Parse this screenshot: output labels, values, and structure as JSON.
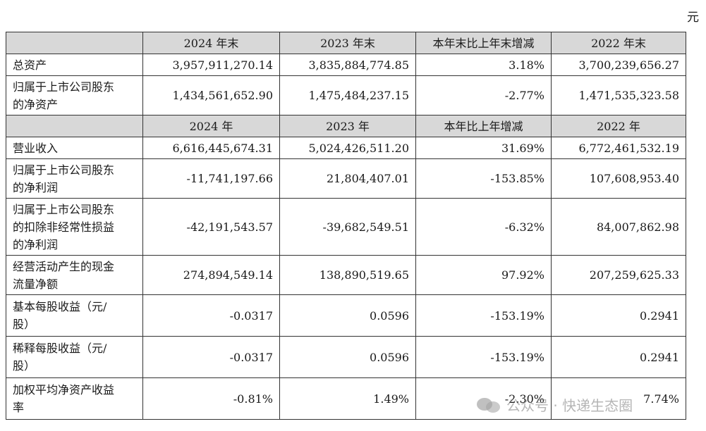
{
  "unit_label": "元",
  "header1": [
    "",
    "2024 年末",
    "2023 年末",
    "本年末比上年末增减",
    "2022 年末"
  ],
  "header2": [
    "",
    "2024 年",
    "2023 年",
    "本年比上年增减",
    "2022 年"
  ],
  "rows_section1": [
    {
      "label_lines": [
        "总资产"
      ],
      "values": [
        "3,957,911,270.14",
        "3,835,884,774.85",
        "3.18%",
        "3,700,239,656.27"
      ]
    },
    {
      "label_lines": [
        "归属于上市公司股东",
        "的净资产"
      ],
      "values": [
        "1,434,561,652.90",
        "1,475,484,237.15",
        "-2.77%",
        "1,471,535,323.58"
      ]
    }
  ],
  "rows_section2": [
    {
      "label_lines": [
        "营业收入"
      ],
      "values": [
        "6,616,445,674.31",
        "5,024,426,511.20",
        "31.69%",
        "6,772,461,532.19"
      ]
    },
    {
      "label_lines": [
        "归属于上市公司股东",
        "的净利润"
      ],
      "values": [
        "-11,741,197.66",
        "21,804,407.01",
        "-153.85%",
        "107,608,953.40"
      ]
    },
    {
      "label_lines": [
        "归属于上市公司股东",
        "的扣除非经常性损益",
        "的净利润"
      ],
      "values": [
        "-42,191,543.57",
        "-39,682,549.51",
        "-6.32%",
        "84,007,862.98"
      ]
    },
    {
      "label_lines": [
        "经营活动产生的现金",
        "流量净额"
      ],
      "values": [
        "274,894,549.14",
        "138,890,519.65",
        "97.92%",
        "207,259,625.33"
      ]
    },
    {
      "label_lines": [
        "基本每股收益（元/",
        "股）"
      ],
      "values": [
        "-0.0317",
        "0.0596",
        "-153.19%",
        "0.2941"
      ]
    },
    {
      "label_lines": [
        "稀释每股收益（元/",
        "股）"
      ],
      "values": [
        "-0.0317",
        "0.0596",
        "-153.19%",
        "0.2941"
      ]
    },
    {
      "label_lines": [
        "加权平均净资产收益",
        "率"
      ],
      "values": [
        "-0.81%",
        "1.49%",
        "-2.30%",
        "7.74%"
      ]
    }
  ],
  "watermark": {
    "text": "公众号 · 快递生态圈",
    "icon": "wechat-icon"
  }
}
